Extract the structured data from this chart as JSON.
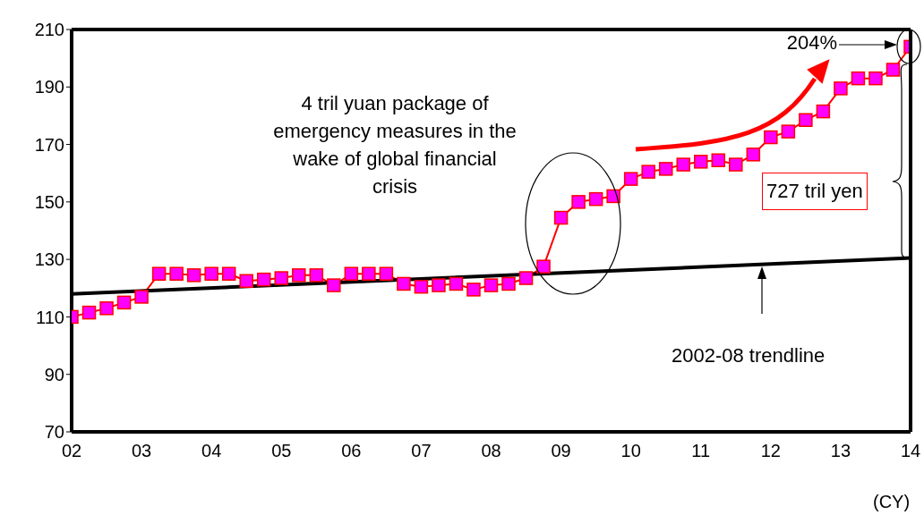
{
  "chart_data": {
    "type": "line",
    "x": [
      2002,
      2002.25,
      2002.5,
      2002.75,
      2003,
      2003.25,
      2003.5,
      2003.75,
      2004,
      2004.25,
      2004.5,
      2004.75,
      2005,
      2005.25,
      2005.5,
      2005.75,
      2006,
      2006.25,
      2006.5,
      2006.75,
      2007,
      2007.25,
      2007.5,
      2007.75,
      2008,
      2008.25,
      2008.5,
      2008.75,
      2009,
      2009.25,
      2009.5,
      2009.75,
      2010,
      2010.25,
      2010.5,
      2010.75,
      2011,
      2011.25,
      2011.5,
      2011.75,
      2012,
      2012.25,
      2012.5,
      2012.75,
      2013,
      2013.25,
      2013.5,
      2013.75,
      2014
    ],
    "series": [
      {
        "color": "#ff0000",
        "marker": "square",
        "values": [
          110,
          111.5,
          113,
          115,
          117,
          125,
          125,
          124.5,
          125,
          125,
          122.5,
          123,
          123.5,
          124.5,
          124.5,
          121,
          125,
          125,
          125,
          121.5,
          120.5,
          121,
          121.5,
          119.5,
          121,
          121.5,
          123.5,
          127.5,
          144.5,
          150,
          151,
          152,
          158,
          160.5,
          161.5,
          163,
          164,
          164.5,
          163,
          166.5,
          172.5,
          174.5,
          178.5,
          181.5,
          189.5,
          193,
          193,
          196,
          204
        ]
      },
      {
        "type": "line",
        "color": "#000000",
        "marker": "none",
        "x": [
          2002,
          2014
        ],
        "values": [
          118,
          130.5
        ]
      }
    ],
    "xlabel": "(CY)",
    "xlim": [
      2002,
      2014
    ],
    "xticks": [
      {
        "value": 2002,
        "label": "02"
      },
      {
        "value": 2003,
        "label": "03"
      },
      {
        "value": 2004,
        "label": "04"
      },
      {
        "value": 2005,
        "label": "05"
      },
      {
        "value": 2006,
        "label": "06"
      },
      {
        "value": 2007,
        "label": "07"
      },
      {
        "value": 2008,
        "label": "08"
      },
      {
        "value": 2009,
        "label": "09"
      },
      {
        "value": 2010,
        "label": "10"
      },
      {
        "value": 2011,
        "label": "11"
      },
      {
        "value": 2012,
        "label": "12"
      },
      {
        "value": 2013,
        "label": "13"
      },
      {
        "value": 2014,
        "label": "14"
      }
    ],
    "ylim": [
      70,
      210
    ],
    "yticks": [
      70,
      90,
      110,
      130,
      150,
      170,
      190,
      210
    ],
    "grid": false,
    "annotations": [
      "4 tril yuan package of emergency measures in the wake of global financial crisis",
      "204%",
      "727 tril yen",
      "2002-08 trendline"
    ]
  }
}
